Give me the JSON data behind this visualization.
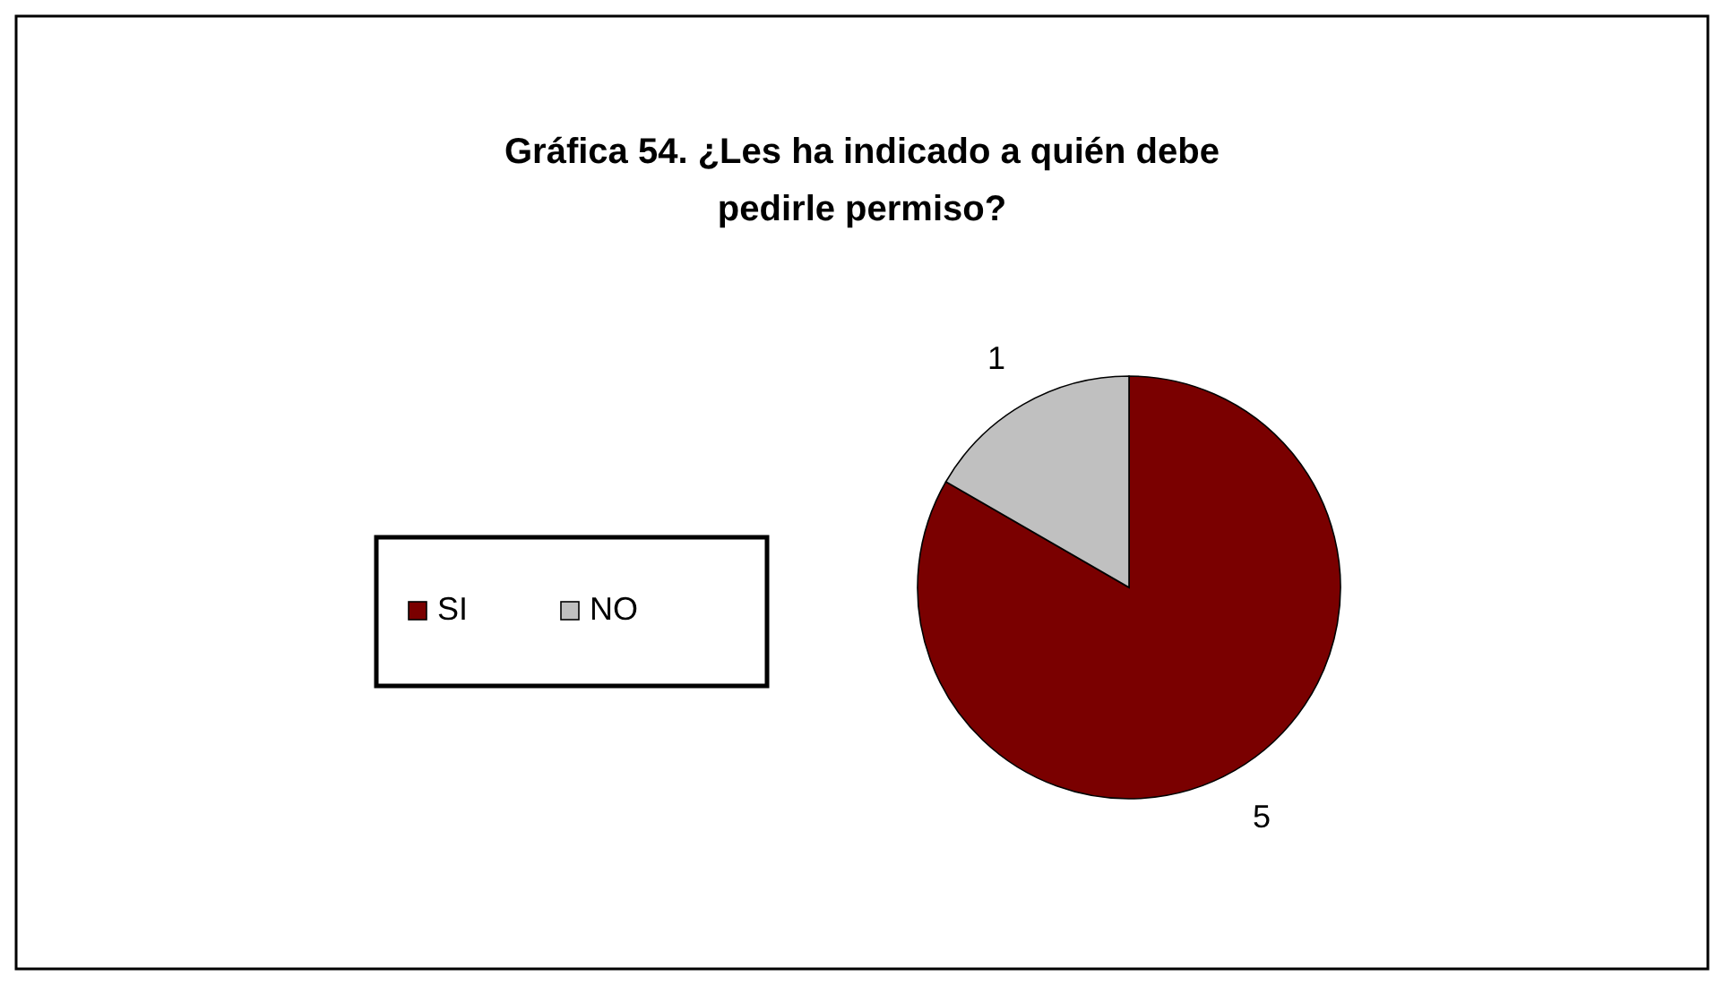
{
  "chart_data": {
    "type": "pie",
    "title": "Gráfica 54.  ¿Les ha indicado a quién debe pedirle permiso?",
    "categories": [
      "SI",
      "NO"
    ],
    "values": [
      5,
      1
    ],
    "colors": [
      "#7a0000",
      "#c0c0c0"
    ],
    "data_labels": true,
    "legend": "left"
  }
}
